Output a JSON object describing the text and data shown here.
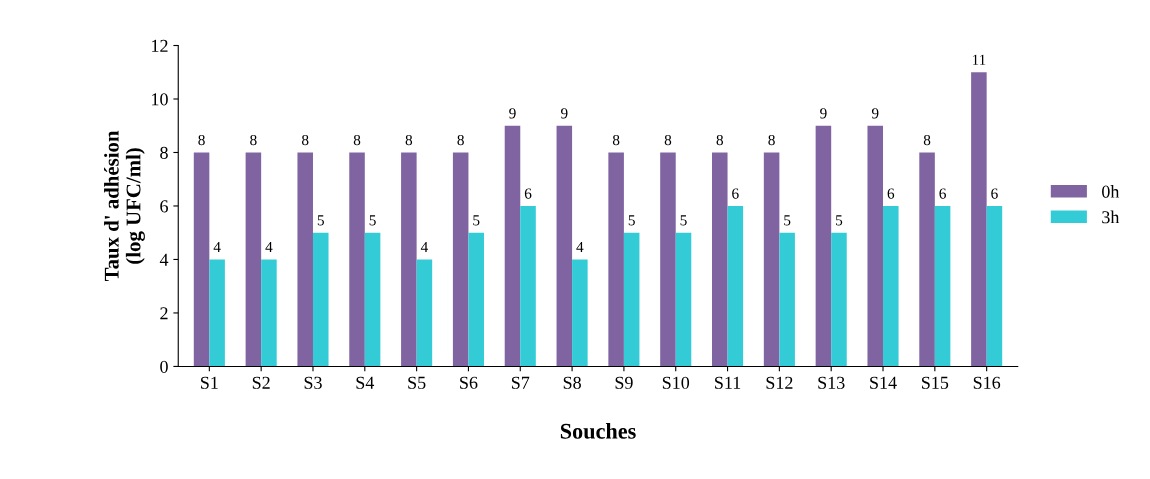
{
  "chart_data": {
    "type": "bar",
    "xlabel": "Souches",
    "ylabel": "Taux d' adhésion\n(log UFC/ml)",
    "categories": [
      "S1",
      "S2",
      "S3",
      "S4",
      "S5",
      "S6",
      "S7",
      "S8",
      "S9",
      "S10",
      "S11",
      "S12",
      "S13",
      "S14",
      "S15",
      "S16"
    ],
    "series": [
      {
        "name": "0h",
        "color": "#8064a2",
        "values": [
          8,
          8,
          8,
          8,
          8,
          8,
          9,
          9,
          8,
          8,
          8,
          8,
          9,
          9,
          8,
          11
        ]
      },
      {
        "name": "3h",
        "color": "#33ccd6",
        "values": [
          4,
          4,
          5,
          5,
          4,
          5,
          6,
          4,
          5,
          5,
          6,
          5,
          5,
          6,
          6,
          6
        ]
      }
    ],
    "ylim": [
      0,
      12
    ],
    "yticks": [
      0,
      2,
      4,
      6,
      8,
      10,
      12
    ],
    "data_labels": true,
    "grid": false,
    "legend": "right"
  }
}
